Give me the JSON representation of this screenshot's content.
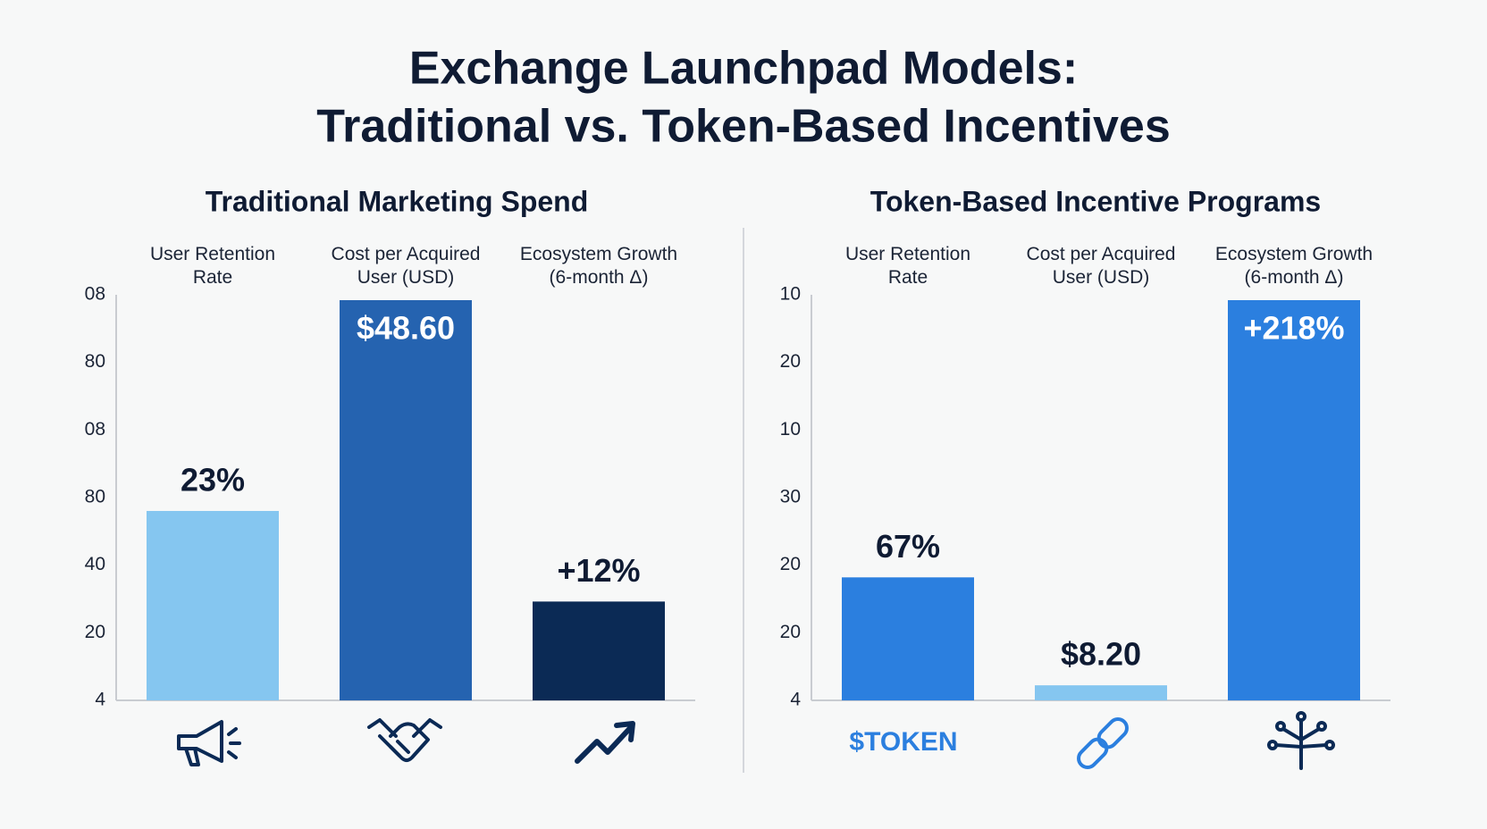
{
  "title_lines": [
    "Exchange Launchpad Models:",
    "Traditional vs. Token-Based Incentives"
  ],
  "chart_data": [
    {
      "type": "bar",
      "title": "Traditional Marketing Spend",
      "categories": [
        "User Retention\nRate",
        "Cost per Acquired\nUser (USD)",
        "Ecosystem Growth\n(6-month Δ)"
      ],
      "values": [
        23,
        48.6,
        12
      ],
      "value_labels": [
        "23%",
        "$48.60",
        "+12%"
      ],
      "colors": [
        "#85c6f0",
        "#2563b0",
        "#0b2a55"
      ],
      "axis_labels": [
        "08",
        "80",
        "08",
        "80",
        "40",
        "20",
        "4"
      ]
    },
    {
      "type": "bar",
      "title": "Token-Based Incentive Programs",
      "categories": [
        "User Retention\nRate",
        "Cost per Acquired\nUser (USD)",
        "Ecosystem Growth\n(6-month Δ)"
      ],
      "values": [
        67,
        8.2,
        218
      ],
      "value_labels": [
        "67%",
        "$8.20",
        "+218%"
      ],
      "colors": [
        "#2b7fdf",
        "#85c6f0",
        "#2b7fdf"
      ],
      "axis_labels": [
        "10",
        "20",
        "10",
        "30",
        "20",
        "20",
        "4"
      ],
      "icon_label": "$TOKEN"
    }
  ]
}
